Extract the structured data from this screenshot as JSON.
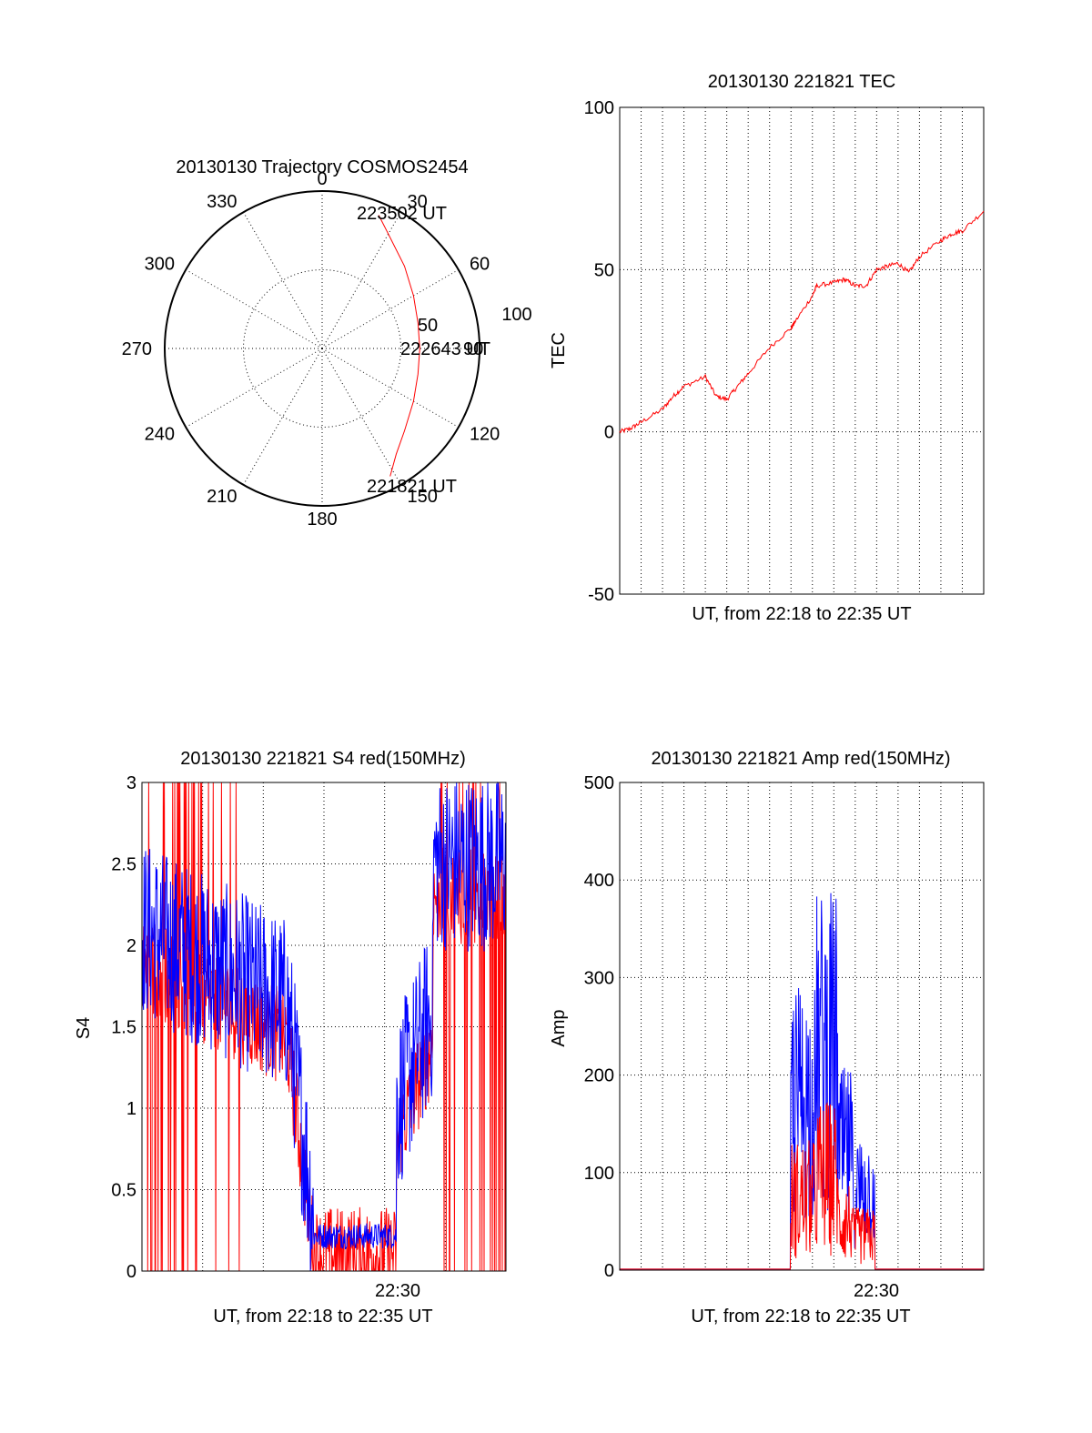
{
  "chart_data": [
    {
      "type": "polar",
      "title": "20130130 Trajectory COSMOS2454",
      "angle_labels": [
        "0",
        "30",
        "60",
        "90",
        "120",
        "150",
        "180",
        "210",
        "240",
        "270",
        "300",
        "330"
      ],
      "radial_labels": [
        "50",
        "100"
      ],
      "annotations": {
        "start": "221821 UT",
        "middle": "222643 UT",
        "end": "223502 UT"
      },
      "trajectory": {
        "color": "#ff0000",
        "az": [
          152,
          145,
          135,
          120,
          105,
          90,
          75,
          60,
          45,
          30,
          23
        ],
        "r": [
          92,
          82,
          74,
          67,
          63,
          62,
          63,
          67,
          74,
          84,
          92
        ]
      }
    },
    {
      "type": "line",
      "title": "20130130 221821 TEC",
      "ylabel": "TEC",
      "xlabel": "UT, from 22:18 to 22:35 UT",
      "ylim": [
        -50,
        100
      ],
      "yticks": [
        "100",
        "50",
        "0",
        "-50"
      ],
      "xlim_minutes": [
        0,
        17
      ],
      "series": [
        {
          "color": "#ff0000",
          "x": [
            0,
            0.5,
            1,
            2,
            2.5,
            3,
            4,
            4.5,
            5,
            5.5,
            6,
            7,
            8,
            8.2,
            9,
            9.2,
            10,
            10.5,
            11,
            11.5,
            12,
            12.5,
            13,
            13.5,
            14,
            15,
            15.5,
            16,
            17
          ],
          "y": [
            0,
            1,
            3,
            7,
            11,
            14,
            17,
            11,
            10,
            14,
            18,
            26,
            32,
            34,
            42,
            45,
            46,
            47,
            45,
            45,
            50,
            51,
            52,
            49,
            54,
            59,
            61,
            62,
            68
          ]
        }
      ]
    },
    {
      "type": "line",
      "title": "20130130 221821 S4 red(150MHz)",
      "ylabel": "S4",
      "xlabel": "UT, from 22:18 to 22:35 UT",
      "xtick_label": "22:30",
      "ylim": [
        0,
        3
      ],
      "yticks": [
        "3",
        "2.5",
        "2",
        "1.5",
        "1",
        "0.5",
        "0"
      ],
      "series": [
        {
          "name": "red",
          "color": "#ff0000"
        },
        {
          "name": "blue",
          "color": "#0000ff"
        }
      ]
    },
    {
      "type": "line",
      "title": "20130130 221821 Amp red(150MHz)",
      "ylabel": "Amp",
      "xlabel": "UT, from 22:18 to 22:35 UT",
      "xtick_label": "22:30",
      "ylim": [
        0,
        500
      ],
      "yticks": [
        "500",
        "400",
        "300",
        "200",
        "100",
        "0"
      ],
      "series": [
        {
          "name": "red",
          "color": "#ff0000"
        },
        {
          "name": "blue",
          "color": "#0000ff"
        }
      ]
    }
  ]
}
